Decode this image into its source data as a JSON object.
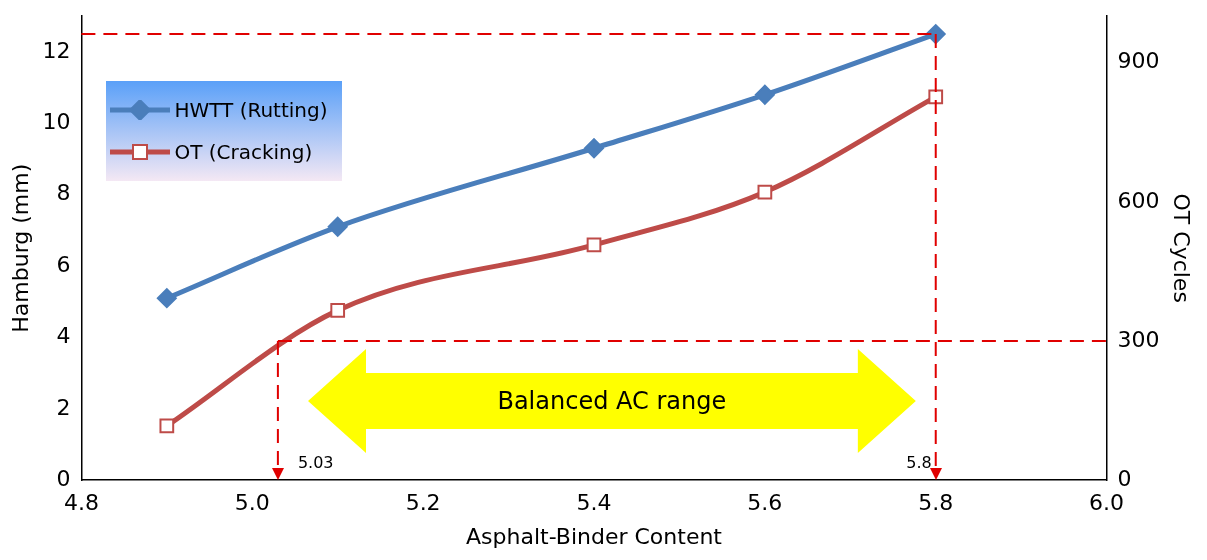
{
  "chart_data": {
    "type": "line",
    "xlabel": "Asphalt-Binder Content",
    "ylabel": "Hamburg (mm)",
    "y2label": "OT Cycles",
    "x": [
      4.9,
      5.1,
      5.4,
      5.6,
      5.8
    ],
    "series": [
      {
        "name": "HWTT (Rutting)",
        "color": "#4a7ebb",
        "values": [
          5.1,
          7.1,
          9.3,
          10.8,
          12.5
        ],
        "marker": "diamond"
      },
      {
        "name": "OT (Cracking)",
        "color": "#be4b48",
        "values": [
          117,
          366,
          507,
          621,
          826
        ],
        "axis": "y2",
        "marker": "square"
      }
    ],
    "xlim": [
      4.8,
      6.0
    ],
    "xticks": [
      4.8,
      {
        "value": 5,
        "label": "5.0"
      },
      5.2,
      5.4,
      5.6,
      5.8,
      {
        "value": 6,
        "label": "6.0"
      }
    ],
    "ylim": [
      0,
      13
    ],
    "yticks": [
      0,
      2,
      4,
      6,
      8,
      10,
      12
    ],
    "y2lim": [
      0,
      1000
    ],
    "y2ticks": [
      0,
      300,
      600,
      900
    ],
    "ref_lines": [
      {
        "axis": "x",
        "value": 5.8,
        "label": "5.8",
        "color": "#e00000",
        "line_style": "dashed"
      },
      {
        "axis": "x",
        "value": 5.03,
        "label": "5.03",
        "color": "#e00000",
        "line_style": "dashed"
      },
      {
        "axis": "y",
        "value": 12.5,
        "color": "#e00000",
        "line_style": "dashed"
      },
      {
        "axis": "y2",
        "value": 300,
        "color": "#e00000",
        "line_style": "dashed"
      }
    ],
    "annotations": [
      "Balanced AC range"
    ],
    "legend": "top left",
    "grid": false,
    "line_style": "solid"
  }
}
